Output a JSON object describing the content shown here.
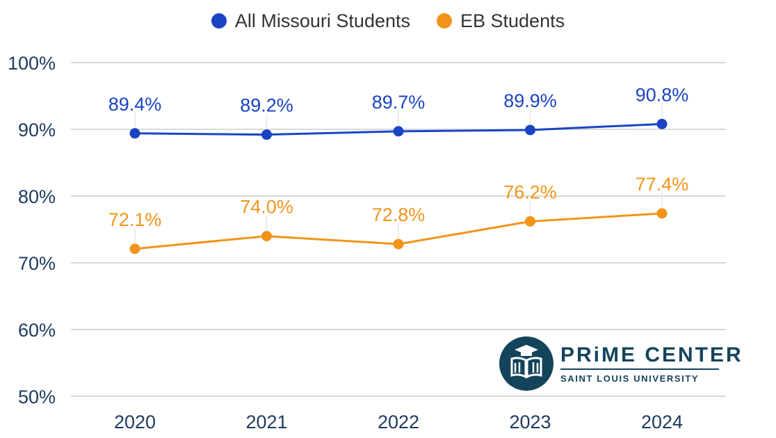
{
  "chart_data": {
    "type": "line",
    "categories": [
      "2020",
      "2021",
      "2022",
      "2023",
      "2024"
    ],
    "series": [
      {
        "name": "All Missouri Students",
        "color": "#1a44c4",
        "values": [
          89.4,
          89.2,
          89.7,
          89.9,
          90.8
        ],
        "labels": [
          "89.4%",
          "89.2%",
          "89.7%",
          "89.9%",
          "90.8%"
        ]
      },
      {
        "name": "EB Students",
        "color": "#f2941a",
        "values": [
          72.1,
          74.0,
          72.8,
          76.2,
          77.4
        ],
        "labels": [
          "72.1%",
          "74.0%",
          "72.8%",
          "76.2%",
          "77.4%"
        ]
      }
    ],
    "ylim": [
      50,
      100
    ],
    "yticks": [
      100,
      90,
      80,
      70,
      60,
      50
    ],
    "ytick_labels": [
      "100%",
      "90%",
      "80%",
      "70%",
      "60%",
      "50%"
    ],
    "grid": true,
    "legend_position": "top-center",
    "axis_label_color": "#1e3a5f",
    "grid_color": "#d9d9d9"
  },
  "logo": {
    "name": "PRiME CENTER",
    "subtitle": "SAINT LOUIS UNIVERSITY",
    "color": "#14445c"
  }
}
